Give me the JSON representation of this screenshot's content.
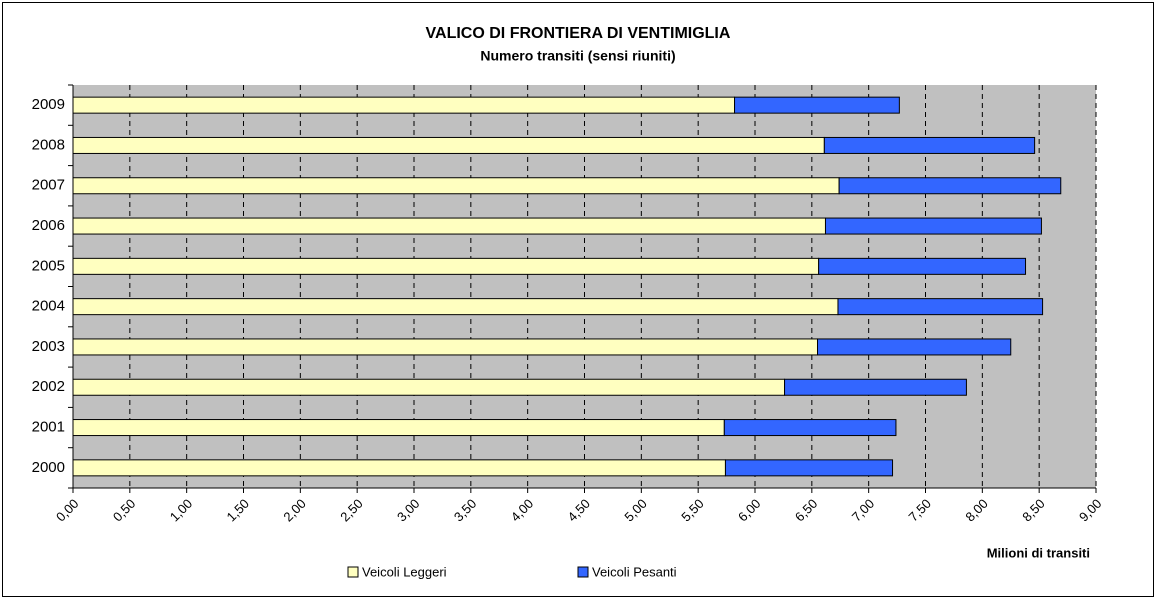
{
  "chart_data": {
    "type": "stacked-barh",
    "title": "VALICO DI FRONTIERA DI VENTIMIGLIA",
    "subtitle": "Numero transiti (sensi riuniti)",
    "xlabel": "Milioni di transiti",
    "categories": [
      "2000",
      "2001",
      "2002",
      "2003",
      "2004",
      "2005",
      "2006",
      "2007",
      "2008",
      "2009"
    ],
    "series": [
      {
        "name": "Veicoli Leggeri",
        "color": "#ffffc0",
        "values": [
          5.74,
          5.73,
          6.26,
          6.55,
          6.73,
          6.56,
          6.62,
          6.74,
          6.61,
          5.82
        ]
      },
      {
        "name": "Veicoli Pesanti",
        "color": "#3366ff",
        "values": [
          1.47,
          1.51,
          1.6,
          1.7,
          1.8,
          1.82,
          1.9,
          1.95,
          1.85,
          1.45
        ]
      }
    ],
    "xlim": [
      0,
      9
    ],
    "xticks": [
      {
        "value": 0,
        "label": "0,00"
      },
      {
        "value": 0.5,
        "label": "0,50"
      },
      {
        "value": 1,
        "label": "1,00"
      },
      {
        "value": 1.5,
        "label": "1,50"
      },
      {
        "value": 2,
        "label": "2,00"
      },
      {
        "value": 2.5,
        "label": "2,50"
      },
      {
        "value": 3,
        "label": "3,00"
      },
      {
        "value": 3.5,
        "label": "3,50"
      },
      {
        "value": 4,
        "label": "4,00"
      },
      {
        "value": 4.5,
        "label": "4,50"
      },
      {
        "value": 5,
        "label": "5,00"
      },
      {
        "value": 5.5,
        "label": "5,50"
      },
      {
        "value": 6,
        "label": "6,00"
      },
      {
        "value": 6.5,
        "label": "6,50"
      },
      {
        "value": 7,
        "label": "7,00"
      },
      {
        "value": 7.5,
        "label": "7,50"
      },
      {
        "value": 8,
        "label": "8,00"
      },
      {
        "value": 8.5,
        "label": "8,50"
      },
      {
        "value": 9,
        "label": "9,00"
      }
    ],
    "grid": true,
    "legend": "bottom"
  }
}
